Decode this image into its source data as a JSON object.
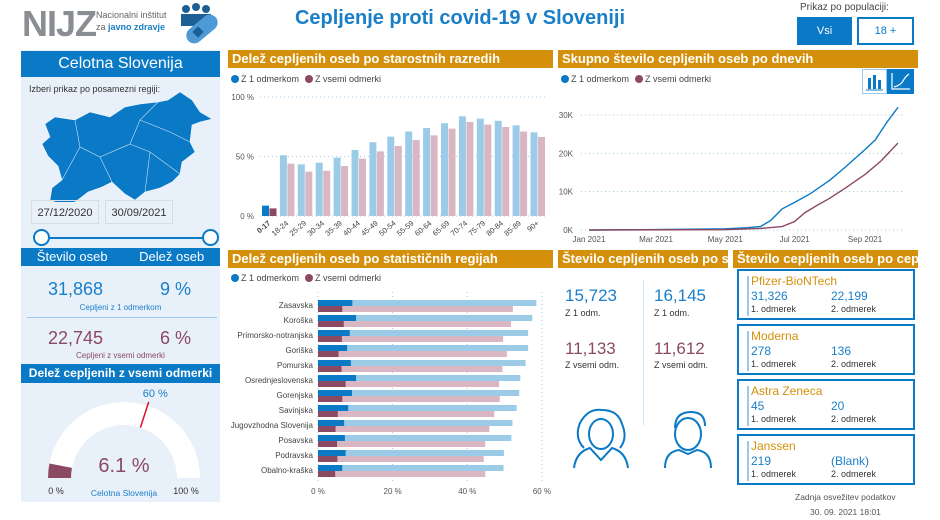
{
  "header": {
    "logo_text": "NIJZ",
    "institute_line1": "Nacionalni inštitut",
    "institute_line2_prefix": "za ",
    "institute_line2_bold": "javno zdravje",
    "erco_logo": "eRCO",
    "title": "Cepljenje proti covid-19 v Sloveniji",
    "population_label": "Prikaz po populaciji:",
    "pop_buttons": [
      "Vsi",
      "18 +"
    ],
    "pop_selected": "Vsi"
  },
  "left": {
    "region_title": "Celotna Slovenija",
    "region_prompt": "Izberi prikaz po posamezni regiji:",
    "date_from": "27/12/2020",
    "date_to": "30/09/2021",
    "col1": "Število oseb",
    "col2": "Delež oseb",
    "one_count": "31,868",
    "one_pct": "9 %",
    "one_label": "Cepljeni z 1 odmerkom",
    "all_count": "22,745",
    "all_pct": "6 %",
    "all_label": "Cepljeni z vsemi odmerki",
    "gauge_title": "Delež cepljenih z vsemi odmerki",
    "gauge_value": "6.1 %",
    "gauge_fraction": 0.061,
    "gauge_target": "60 %",
    "gauge_target_fraction": 0.6,
    "gauge_min": "0 %",
    "gauge_max": "100 %",
    "gauge_sub": "Celotna Slovenija"
  },
  "colors": {
    "blue": "#0a79c6",
    "light_blue": "#9ccbe8",
    "maroon": "#8b4a62",
    "light_maroon": "#d8b7c3",
    "gold": "#d4900a"
  },
  "legend": {
    "one": "Z 1 odmerkom",
    "all": "Z vsemi odmerki"
  },
  "chart_data": [
    {
      "type": "bar",
      "title": "Delež cepljenih oseb po starostnih razredih",
      "ylim": [
        0,
        100
      ],
      "yticks": [
        "0 %",
        "50 %",
        "100 %"
      ],
      "ytick_values": [
        0,
        50,
        100
      ],
      "categories": [
        "0-17",
        "18-24",
        "25-29",
        "30-34",
        "35-39",
        "40-44",
        "45-49",
        "50-54",
        "55-59",
        "60-64",
        "65-69",
        "70-74",
        "75-79",
        "80-84",
        "85-89",
        "90+"
      ],
      "series": [
        {
          "name": "Z 1 odmerkom",
          "values": [
            8.7,
            51,
            43.4,
            44.8,
            49,
            55.5,
            62,
            66.7,
            71,
            74,
            78,
            83.8,
            81.8,
            80,
            76.2,
            70.3
          ]
        },
        {
          "name": "Z vsemi odmerki",
          "values": [
            6.4,
            44,
            37.3,
            38,
            42,
            48.2,
            54.3,
            58.8,
            63.9,
            67.8,
            73.4,
            79,
            76.8,
            74.8,
            71,
            66.4
          ]
        }
      ],
      "highlighted": "0-17"
    },
    {
      "type": "line",
      "title": "Skupno število cepljenih oseb po dnevih",
      "ylim": [
        0,
        32000
      ],
      "yticks": [
        "0K",
        "10K",
        "20K",
        "30K"
      ],
      "ytick_values": [
        0,
        10000,
        20000,
        30000
      ],
      "xticks": [
        "Jan 2021",
        "Mar 2021",
        "May 2021",
        "Jul 2021",
        "Sep 2021"
      ],
      "xtick_dates": [
        "2021-01-01",
        "2021-03-01",
        "2021-05-01",
        "2021-07-01",
        "2021-09-01"
      ],
      "series": [
        {
          "name": "Z 1 odmerkom",
          "points": [
            [
              "2021-01-01",
              0
            ],
            [
              "2021-03-01",
              100
            ],
            [
              "2021-05-01",
              300
            ],
            [
              "2021-05-20",
              600
            ],
            [
              "2021-06-01",
              900
            ],
            [
              "2021-06-10",
              2500
            ],
            [
              "2021-06-20",
              5500
            ],
            [
              "2021-07-01",
              7200
            ],
            [
              "2021-07-15",
              9500
            ],
            [
              "2021-08-01",
              13000
            ],
            [
              "2021-08-15",
              16500
            ],
            [
              "2021-09-01",
              21000
            ],
            [
              "2021-09-10",
              23500
            ],
            [
              "2021-09-20",
              28000
            ],
            [
              "2021-09-30",
              32000
            ]
          ]
        },
        {
          "name": "Z vsemi odmerki",
          "points": [
            [
              "2021-01-01",
              0
            ],
            [
              "2021-05-01",
              100
            ],
            [
              "2021-06-01",
              400
            ],
            [
              "2021-06-20",
              900
            ],
            [
              "2021-07-01",
              2200
            ],
            [
              "2021-07-10",
              4500
            ],
            [
              "2021-07-20",
              6300
            ],
            [
              "2021-08-01",
              8300
            ],
            [
              "2021-08-15",
              11000
            ],
            [
              "2021-09-01",
              14500
            ],
            [
              "2021-09-15",
              18000
            ],
            [
              "2021-09-30",
              22700
            ]
          ]
        }
      ]
    },
    {
      "type": "bar",
      "orientation": "horizontal",
      "title": "Delež cepljenih oseb po statističnih regijah",
      "xlim": [
        0,
        60
      ],
      "xticks": [
        "0 %",
        "20 %",
        "40 %",
        "60 %"
      ],
      "xtick_values": [
        0,
        20,
        40,
        60
      ],
      "categories": [
        "Zasavska",
        "Koroška",
        "Primorsko-notranjska",
        "Goriška",
        "Pomurska",
        "Osrednjeslovenska",
        "Gorenjska",
        "Savinjska",
        "Jugovzhodna Slovenija",
        "Posavska",
        "Podravska",
        "Obalno-kraška"
      ],
      "series": [
        {
          "name": "Z 1 odmerkom",
          "values": [
            58.5,
            57.4,
            56.3,
            56.3,
            55.6,
            54.2,
            53.9,
            53.2,
            52.1,
            51.8,
            49.8,
            49.7
          ],
          "highlight_values": [
            9.2,
            10.2,
            8.5,
            7.8,
            8.8,
            10.2,
            9.1,
            8.1,
            7.0,
            7.2,
            7.4,
            6.5
          ]
        },
        {
          "name": "Z vsemi odmerki",
          "values": [
            52.2,
            51.7,
            49.6,
            50.6,
            49.4,
            48.5,
            48.7,
            47.2,
            45.9,
            44.8,
            44.4,
            44.8
          ],
          "highlight_values": [
            6.5,
            6.9,
            6.4,
            5.5,
            6.3,
            7.4,
            6.5,
            5.3,
            4.7,
            5.1,
            5.2,
            4.6
          ]
        }
      ]
    }
  ],
  "gender": {
    "title": "Število cepljenih oseb po spolu",
    "female": {
      "one": "15,723",
      "all": "11,133"
    },
    "male": {
      "one": "16,145",
      "all": "11,612"
    },
    "one_label": "Z 1 odm.",
    "all_label": "Z vsemi odm."
  },
  "vaccines": {
    "title": "Število cepljenih oseb po cepivu",
    "dose1_label": "1. odmerek",
    "dose2_label": "2. odmerek",
    "items": [
      {
        "name": "Pfizer-BioNTech",
        "d1": "31,326",
        "d2": "22,199"
      },
      {
        "name": "Moderna",
        "d1": "278",
        "d2": "136"
      },
      {
        "name": "Astra Zeneca",
        "d1": "45",
        "d2": "20"
      },
      {
        "name": "Janssen",
        "d1": "219",
        "d2": "(Blank)"
      }
    ]
  },
  "footer": {
    "refresh_label": "Zadnja osvežitev podatkov",
    "refresh_time": "30. 09. 2021 18:01"
  }
}
